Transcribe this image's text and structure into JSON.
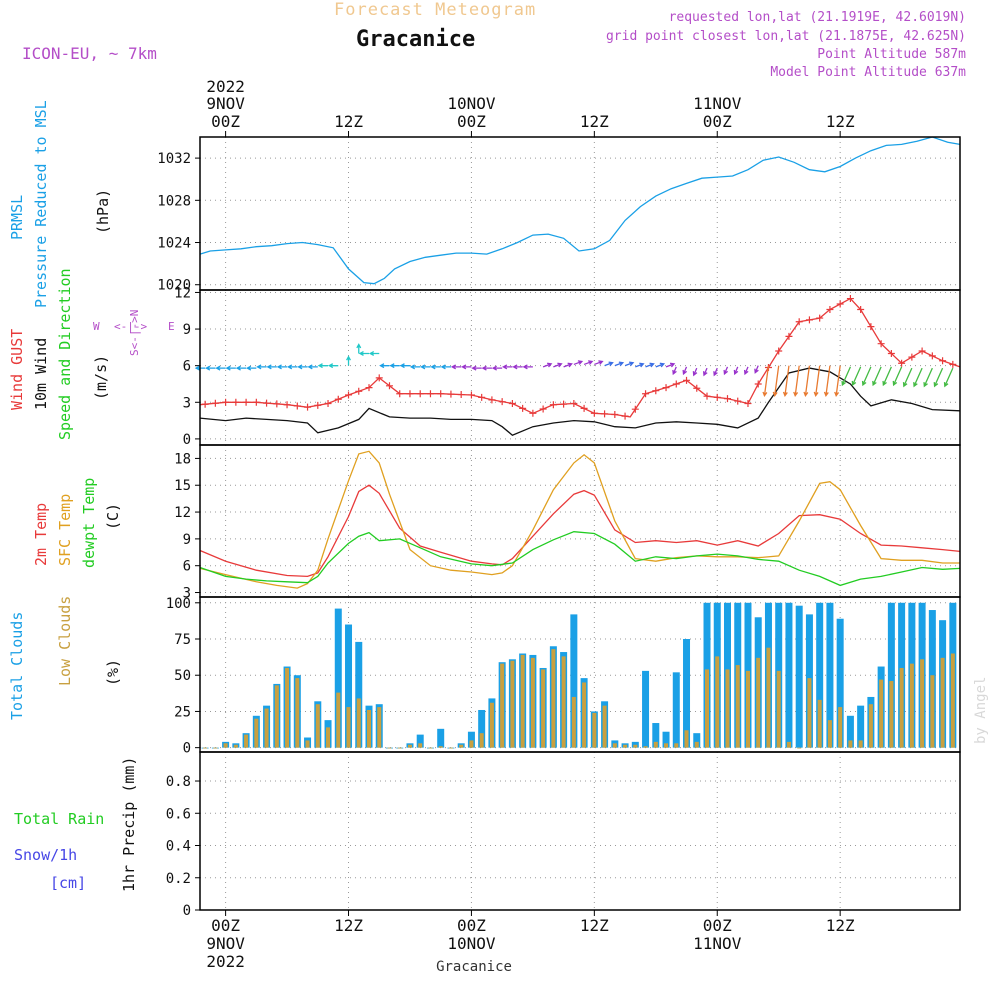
{
  "header": {
    "title": "Forecast Meteogram",
    "station": "Gracanice",
    "model": "ICON-EU, ~ 7km",
    "requested": "requested lon,lat (21.1919E, 42.6019N)",
    "grid_point": "grid point closest lon,lat (21.1875E, 42.625N)",
    "point_altitude": "Point Altitude 587m",
    "model_altitude": "Model Point Altitude 637m",
    "footer_station": "Gracanice",
    "credit": "by Angel"
  },
  "colors": {
    "pressure": "#1aa0e6",
    "gust": "#e83a3a",
    "wind": "#111111",
    "temp2m": "#e83a3a",
    "sfc": "#e0a020",
    "dew": "#22cc22",
    "total_clouds": "#1aa0e6",
    "low_clouds": "#c8a040",
    "purple": "#b44ec8",
    "snow": "#4646e6"
  },
  "time_axis": {
    "top_labels": [
      {
        "h": 0,
        "l1": "9NOV",
        "l2": "00Z",
        "l0": "2022"
      },
      {
        "h": 12,
        "l2": "12Z"
      },
      {
        "h": 24,
        "l1": "10NOV",
        "l2": "00Z"
      },
      {
        "h": 36,
        "l2": "12Z"
      },
      {
        "h": 48,
        "l1": "11NOV",
        "l2": "00Z"
      },
      {
        "h": 60,
        "l2": "12Z"
      }
    ],
    "bottom_labels": [
      {
        "h": 0,
        "l1": "00Z",
        "l2": "9NOV",
        "l3": "2022"
      },
      {
        "h": 12,
        "l1": "12Z"
      },
      {
        "h": 24,
        "l1": "00Z",
        "l2": "10NOV"
      },
      {
        "h": 36,
        "l1": "12Z"
      },
      {
        "h": 48,
        "l1": "00Z",
        "l2": "11NOV"
      },
      {
        "h": 60,
        "l1": "12Z"
      }
    ],
    "start_hour": -2.5,
    "end_hour": 71.7
  },
  "chart_data": [
    {
      "id": "pressure",
      "type": "line",
      "ylabel": [
        "PRMSL",
        "Pressure Reduced to MSL",
        "(hPa)"
      ],
      "unit": "(hPa)",
      "yrange": [
        1019.5,
        1034.0
      ],
      "yticks": [
        1020,
        1024,
        1028,
        1032
      ],
      "ytick_labels": [
        "1020",
        "1024",
        "1028",
        "1032"
      ],
      "series": [
        {
          "name": "PRMSL",
          "color": "#1aa0e6",
          "x": [
            -2.5,
            -1.5,
            0,
            1.5,
            3,
            4.5,
            6,
            7.5,
            9,
            10.5,
            12,
            13.5,
            14.5,
            15.5,
            16.5,
            18,
            19.5,
            21,
            22.5,
            24,
            25.5,
            27,
            28.5,
            30,
            31.5,
            33,
            34.5,
            36,
            37.5,
            39,
            40.5,
            42,
            43.5,
            45,
            46.5,
            48,
            49.5,
            51,
            52.5,
            54,
            55.5,
            57,
            58.5,
            60,
            61.5,
            63,
            64.5,
            66,
            67.5,
            69,
            70.5,
            71.7
          ],
          "y": [
            1022.9,
            1023.2,
            1023.3,
            1023.4,
            1023.6,
            1023.7,
            1023.9,
            1024.0,
            1023.8,
            1023.5,
            1021.5,
            1020.2,
            1020.1,
            1020.6,
            1021.5,
            1022.2,
            1022.6,
            1022.8,
            1023.0,
            1023.0,
            1022.9,
            1023.4,
            1024.0,
            1024.7,
            1024.8,
            1024.4,
            1023.2,
            1023.4,
            1024.2,
            1026.1,
            1027.4,
            1028.4,
            1029.1,
            1029.6,
            1030.1,
            1030.2,
            1030.3,
            1030.9,
            1031.8,
            1032.1,
            1031.6,
            1030.9,
            1030.7,
            1031.2,
            1032.0,
            1032.7,
            1033.2,
            1033.3,
            1033.6,
            1034.0,
            1033.5,
            1033.3
          ]
        }
      ]
    },
    {
      "id": "wind",
      "type": "line",
      "ylabel": [
        "Wind GUST",
        "10m Wind",
        "Speed and Direction",
        "(m/s)"
      ],
      "unit": "(m/s)",
      "yrange": [
        -0.5,
        12.2
      ],
      "yticks": [
        0,
        3,
        6,
        9,
        12
      ],
      "ytick_labels": [
        "0",
        "3",
        "6",
        "9",
        "12"
      ],
      "series": [
        {
          "name": "Wind GUST",
          "color": "#e83a3a",
          "x": [
            -2.5,
            0,
            3,
            6,
            8,
            10,
            12,
            14,
            15,
            17,
            19,
            21,
            24,
            26,
            28,
            30,
            32,
            34,
            36,
            38,
            39.5,
            41,
            43,
            45,
            47,
            49,
            51,
            52,
            54,
            56,
            58,
            59,
            61,
            62,
            64,
            66,
            68,
            70,
            71.7
          ],
          "y": [
            2.8,
            3.0,
            3.0,
            2.8,
            2.6,
            2.9,
            3.6,
            4.2,
            5.0,
            3.7,
            3.7,
            3.7,
            3.6,
            3.2,
            2.9,
            2.1,
            2.8,
            2.9,
            2.1,
            2.0,
            1.8,
            3.7,
            4.2,
            4.8,
            3.5,
            3.3,
            2.9,
            4.5,
            7.2,
            9.6,
            9.9,
            10.6,
            11.5,
            10.6,
            7.8,
            6.2,
            7.2,
            6.4,
            5.9
          ]
        },
        {
          "name": "10m Wind",
          "color": "#111111",
          "x": [
            -2.5,
            0,
            2,
            4,
            6,
            8,
            9,
            11,
            13,
            14,
            16,
            18,
            20,
            22,
            24,
            26,
            27,
            28,
            30,
            32,
            34,
            36,
            38,
            40,
            42,
            44,
            46,
            48,
            50,
            52,
            53,
            55,
            57,
            59,
            61,
            62,
            63,
            65,
            67,
            69,
            71.7
          ],
          "y": [
            1.7,
            1.5,
            1.7,
            1.6,
            1.5,
            1.3,
            0.5,
            0.9,
            1.6,
            2.5,
            1.8,
            1.7,
            1.7,
            1.6,
            1.6,
            1.5,
            1.0,
            0.3,
            1.0,
            1.3,
            1.5,
            1.4,
            1.0,
            0.9,
            1.3,
            1.4,
            1.3,
            1.2,
            0.9,
            1.7,
            3.0,
            5.4,
            5.8,
            5.5,
            4.5,
            3.5,
            2.7,
            3.2,
            2.9,
            2.4,
            2.3
          ]
        },
        {
          "name": "Speed and Direction",
          "color": "#22cc22",
          "x": [
            -2.5,
            0,
            3,
            6,
            9,
            12,
            15,
            18,
            21,
            24,
            27,
            30,
            33,
            36,
            39,
            42,
            45,
            48,
            51,
            54,
            57,
            60,
            63,
            66,
            69,
            71.7
          ],
          "y": [
            5.8,
            5.8,
            5.9,
            5.9,
            6.0,
            7.0,
            6.0,
            5.9,
            5.9,
            5.8,
            5.9,
            5.9,
            6.1,
            6.0,
            5.9,
            5.9,
            5.8,
            5.9,
            6.0,
            6.0,
            6.0,
            5.9,
            5.9,
            5.8,
            5.8,
            5.7
          ]
        }
      ]
    },
    {
      "id": "temperature",
      "type": "line",
      "ylabel": [
        "2m Temp",
        "SFC Temp",
        "dewpt Temp",
        "(C)"
      ],
      "unit": "(C)",
      "yrange": [
        2.5,
        19.5
      ],
      "yticks": [
        3,
        6,
        9,
        12,
        15,
        18
      ],
      "ytick_labels": [
        "3",
        "6",
        "9",
        "12",
        "15",
        "18"
      ],
      "series": [
        {
          "name": "2m Temp",
          "color": "#e83a3a",
          "x": [
            -2.5,
            0,
            3,
            6,
            8,
            9,
            10,
            12,
            13,
            14,
            15,
            17,
            19,
            21,
            24,
            26,
            27,
            28,
            30,
            32,
            34,
            35,
            36,
            38,
            40,
            42,
            44,
            46,
            48,
            50,
            52,
            54,
            56,
            58,
            60,
            62,
            64,
            66,
            68,
            70,
            71.7
          ],
          "y": [
            7.7,
            6.5,
            5.5,
            4.9,
            4.8,
            5.2,
            7.0,
            11.5,
            14.3,
            15.0,
            14.1,
            10.2,
            8.2,
            7.5,
            6.5,
            6.2,
            6.1,
            6.8,
            9.3,
            11.8,
            14.0,
            14.4,
            13.9,
            10.0,
            8.6,
            8.8,
            8.6,
            8.8,
            8.3,
            8.8,
            8.2,
            9.6,
            11.6,
            11.7,
            11.2,
            9.6,
            8.3,
            8.2,
            8.0,
            7.8,
            7.6
          ]
        },
        {
          "name": "SFC Temp",
          "color": "#e0a020",
          "x": [
            -2.5,
            0,
            3,
            5,
            7,
            8,
            9,
            10,
            12,
            13,
            14,
            15,
            16,
            18,
            20,
            22,
            24,
            26,
            27,
            28,
            30,
            32,
            34,
            35,
            36,
            38,
            40,
            42,
            44,
            46,
            48,
            50,
            52,
            54,
            56,
            58,
            59,
            60,
            62,
            64,
            66,
            68,
            70,
            71.7
          ],
          "y": [
            5.7,
            5.0,
            4.2,
            3.8,
            3.5,
            4.0,
            5.5,
            9.0,
            15.5,
            18.5,
            18.8,
            17.5,
            14.0,
            7.8,
            6.0,
            5.5,
            5.3,
            5.0,
            5.2,
            6.0,
            10.0,
            14.5,
            17.5,
            18.4,
            17.5,
            11.0,
            6.8,
            6.5,
            6.9,
            7.1,
            7.0,
            7.0,
            6.9,
            7.1,
            11.0,
            15.2,
            15.4,
            14.5,
            10.5,
            6.8,
            6.6,
            6.6,
            6.3,
            6.3
          ]
        },
        {
          "name": "dewpt Temp",
          "color": "#22cc22",
          "x": [
            -2.5,
            0,
            2,
            4,
            6,
            8,
            9,
            10,
            12,
            13,
            14,
            15,
            17,
            19,
            21,
            24,
            26,
            28,
            30,
            32,
            34,
            36,
            38,
            40,
            42,
            44,
            46,
            48,
            50,
            52,
            54,
            56,
            58,
            60,
            62,
            64,
            66,
            68,
            70,
            71.7
          ],
          "y": [
            5.8,
            4.8,
            4.5,
            4.3,
            4.2,
            4.1,
            4.8,
            6.3,
            8.5,
            9.3,
            9.7,
            8.8,
            9.0,
            8.0,
            7.0,
            6.2,
            6.0,
            6.3,
            7.8,
            8.9,
            9.8,
            9.6,
            8.4,
            6.5,
            7.0,
            6.8,
            7.1,
            7.3,
            7.1,
            6.7,
            6.5,
            5.5,
            4.8,
            3.8,
            4.5,
            4.8,
            5.3,
            5.8,
            5.6,
            5.7
          ]
        }
      ]
    },
    {
      "id": "clouds",
      "type": "bar",
      "ylabel": [
        "Total Clouds",
        "Low Clouds",
        "(%)"
      ],
      "unit": "(%)",
      "yrange": [
        -3,
        104
      ],
      "yticks": [
        0,
        25,
        50,
        75,
        100
      ],
      "ytick_labels": [
        "0",
        "25",
        "50",
        "75",
        "100"
      ],
      "hours": [
        -2,
        -1,
        0,
        1,
        2,
        3,
        4,
        5,
        6,
        7,
        8,
        9,
        10,
        11,
        12,
        13,
        14,
        15,
        16,
        17,
        18,
        19,
        20,
        21,
        22,
        23,
        24,
        25,
        26,
        27,
        28,
        29,
        30,
        31,
        32,
        33,
        34,
        35,
        36,
        37,
        38,
        39,
        40,
        41,
        42,
        43,
        44,
        45,
        46,
        47,
        48,
        49,
        50,
        51,
        52,
        53,
        54,
        55,
        56,
        57,
        58,
        59,
        60,
        61,
        62,
        63,
        64,
        65,
        66,
        67,
        68,
        69,
        70,
        71
      ],
      "series": [
        {
          "name": "Total Clouds",
          "color": "#1aa0e6",
          "values": [
            0,
            0,
            4,
            3,
            10,
            22,
            29,
            44,
            56,
            50,
            7,
            32,
            19,
            96,
            85,
            73,
            29,
            30,
            0,
            0,
            3,
            9,
            0,
            13,
            0,
            3,
            11,
            26,
            34,
            59,
            61,
            65,
            64,
            55,
            70,
            66,
            92,
            48,
            25,
            32,
            5,
            3,
            4,
            53,
            17,
            11,
            52,
            75,
            10,
            100,
            100,
            100,
            100,
            100,
            90,
            100,
            100,
            100,
            98,
            92,
            100,
            100,
            89,
            22,
            29,
            35,
            56,
            100,
            100,
            100,
            100,
            95,
            88,
            100
          ]
        },
        {
          "name": "Low Clouds",
          "color": "#c8a040",
          "values": [
            0,
            0,
            3,
            2,
            9,
            20,
            27,
            43,
            55,
            48,
            5,
            30,
            14,
            38,
            28,
            34,
            26,
            28,
            0,
            0,
            2,
            3,
            0,
            1,
            0,
            2,
            5,
            10,
            31,
            58,
            60,
            64,
            62,
            54,
            68,
            63,
            35,
            45,
            24,
            29,
            3,
            2,
            2,
            1,
            4,
            3,
            3,
            12,
            4,
            54,
            63,
            54,
            57,
            53,
            62,
            69,
            53,
            4,
            0,
            48,
            33,
            19,
            28,
            5,
            5,
            30,
            47,
            46,
            55,
            58,
            61,
            50,
            62,
            65
          ]
        }
      ]
    },
    {
      "id": "precip",
      "type": "bar",
      "ylabel": [
        "Total Rain",
        "Snow/1h",
        "[cm]",
        "1hr Precip (mm)"
      ],
      "unit": "1hr Precip (mm)",
      "yrange": [
        0,
        0.98
      ],
      "yticks": [
        0,
        0.2,
        0.4,
        0.6,
        0.8
      ],
      "ytick_labels": [
        "0",
        "0.2",
        "0.4",
        "0.6",
        "0.8"
      ],
      "series": [
        {
          "name": "Total Rain",
          "color": "#22cc22",
          "values": []
        }
      ]
    }
  ]
}
